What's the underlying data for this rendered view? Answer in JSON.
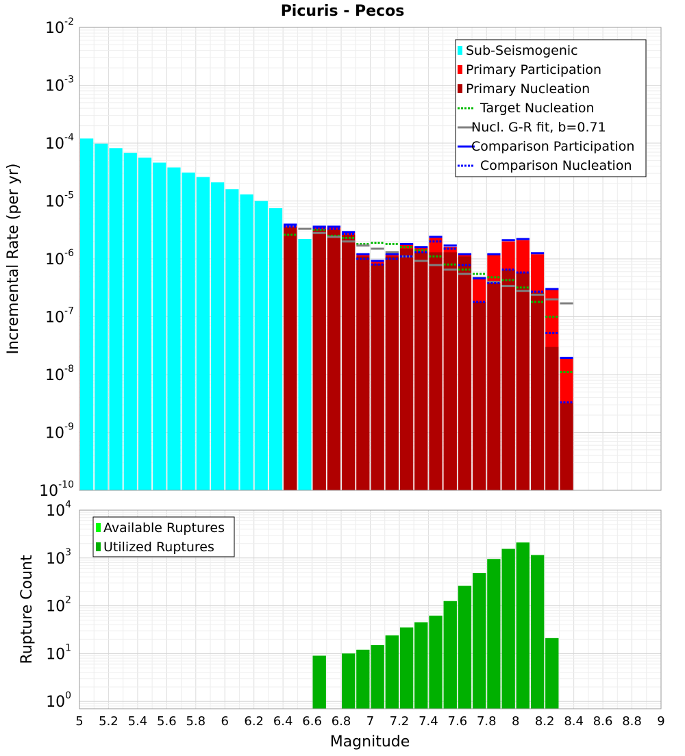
{
  "chart_data": [
    {
      "type": "bar",
      "title": "Picuris - Pecos",
      "xlabel": "",
      "ylabel": "Incremental Rate (per yr)",
      "yscale": "log",
      "xlim": [
        5,
        9
      ],
      "ylim": [
        1e-10,
        0.01
      ],
      "grid": true,
      "legend_position": "top-right",
      "y_ticks": [
        {
          "base": "10",
          "exp": "-10",
          "value": 1e-10
        },
        {
          "base": "10",
          "exp": "-9",
          "value": 1e-09
        },
        {
          "base": "10",
          "exp": "-8",
          "value": 1e-08
        },
        {
          "base": "10",
          "exp": "-7",
          "value": 1e-07
        },
        {
          "base": "10",
          "exp": "-6",
          "value": 1e-06
        },
        {
          "base": "10",
          "exp": "-5",
          "value": 1e-05
        },
        {
          "base": "10",
          "exp": "-4",
          "value": 0.0001
        },
        {
          "base": "10",
          "exp": "-3",
          "value": 0.001
        },
        {
          "base": "10",
          "exp": "-2",
          "value": 0.01
        }
      ],
      "series": [
        {
          "name": "Sub-Seismogenic",
          "kind": "bar",
          "color": "#00ffff",
          "x": [
            5.05,
            5.15,
            5.25,
            5.35,
            5.45,
            5.55,
            5.65,
            5.75,
            5.85,
            5.95,
            6.05,
            6.15,
            6.25,
            6.35,
            6.45,
            6.55
          ],
          "values": [
            0.00012,
            9.8e-05,
            8.2e-05,
            6.8e-05,
            5.6e-05,
            4.6e-05,
            3.8e-05,
            3.1e-05,
            2.6e-05,
            2.1e-05,
            1.6e-05,
            1.3e-05,
            1e-05,
            7.5e-06,
            3.5e-06,
            2.2e-06
          ]
        },
        {
          "name": "Primary Participation",
          "kind": "bar",
          "color": "#ff0000",
          "x": [
            6.45,
            6.65,
            6.75,
            6.85,
            6.95,
            7.05,
            7.15,
            7.25,
            7.35,
            7.45,
            7.55,
            7.65,
            7.75,
            7.85,
            7.95,
            8.05,
            8.15,
            8.25,
            8.35
          ],
          "values": [
            3.8e-06,
            3.5e-06,
            3.5e-06,
            2.8e-06,
            1.2e-06,
            9e-07,
            1.2e-06,
            1.8e-06,
            1.6e-06,
            2.3e-06,
            1.6e-06,
            1.2e-06,
            4.5e-07,
            1.2e-06,
            2e-06,
            2.1e-06,
            1.2e-06,
            2.9e-07,
            1.9e-08
          ]
        },
        {
          "name": "Primary Nucleation",
          "kind": "bar",
          "color": "#b00000",
          "x": [
            6.45,
            6.65,
            6.75,
            6.85,
            6.95,
            7.05,
            7.15,
            7.25,
            7.35,
            7.45,
            7.55,
            7.65,
            7.75,
            7.85,
            7.95,
            8.05,
            8.15,
            8.25,
            8.35
          ],
          "values": [
            3.5e-06,
            3.3e-06,
            3.2e-06,
            2.6e-06,
            1.1e-06,
            8.2e-07,
            1.1e-06,
            1.5e-06,
            1.3e-06,
            1.3e-06,
            1.3e-06,
            1.1e-06,
            1.8e-07,
            3.8e-07,
            6.5e-07,
            5.8e-07,
            2.6e-07,
            3e-08,
            3.2e-09
          ]
        },
        {
          "name": "Target Nucleation",
          "kind": "step",
          "style": "dotted",
          "color": "#00bb00",
          "x": [
            6.45,
            6.65,
            6.75,
            6.85,
            6.95,
            7.05,
            7.15,
            7.25,
            7.35,
            7.45,
            7.55,
            7.65,
            7.75,
            7.85,
            7.95,
            8.05,
            8.15,
            8.25,
            8.35
          ],
          "values": [
            2.6e-06,
            3.2e-06,
            2.5e-06,
            2.3e-06,
            1.8e-06,
            1.9e-06,
            1.8e-06,
            1.6e-06,
            1.4e-06,
            1.1e-06,
            8e-07,
            6.5e-07,
            5.5e-07,
            4.8e-07,
            4.3e-07,
            3.2e-07,
            1.8e-07,
            1e-07,
            1.1e-08
          ]
        },
        {
          "name": "Nucl. G-R fit, b=0.71",
          "kind": "step",
          "style": "solid",
          "color": "#808080",
          "x": [
            6.45,
            6.55,
            6.65,
            6.75,
            6.85,
            6.95,
            7.05,
            7.15,
            7.25,
            7.35,
            7.45,
            7.55,
            7.65,
            7.75,
            7.85,
            7.95,
            8.05,
            8.15,
            8.25,
            8.35
          ],
          "values": [
            3.8e-06,
            3.3e-06,
            2.8e-06,
            2.4e-06,
            2e-06,
            1.7e-06,
            1.5e-06,
            1.3e-06,
            1.1e-06,
            9.2e-07,
            7.8e-07,
            6.5e-07,
            5.5e-07,
            4.7e-07,
            4e-07,
            3.4e-07,
            2.8e-07,
            2.4e-07,
            2e-07,
            1.7e-07
          ]
        },
        {
          "name": "Comparison Participation",
          "kind": "step",
          "style": "solid",
          "color": "#0000ff",
          "x": [
            6.45,
            6.65,
            6.75,
            6.85,
            6.95,
            7.05,
            7.15,
            7.25,
            7.35,
            7.45,
            7.55,
            7.65,
            7.75,
            7.85,
            7.95,
            8.05,
            8.15,
            8.25,
            8.35
          ],
          "values": [
            3.9e-06,
            3.6e-06,
            3.6e-06,
            2.9e-06,
            1.2e-06,
            9.2e-07,
            1.2e-06,
            1.8e-06,
            1.6e-06,
            2.4e-06,
            1.7e-06,
            1.2e-06,
            4.6e-07,
            1.2e-06,
            2.1e-06,
            2.2e-06,
            1.25e-06,
            3e-07,
            1.95e-08
          ]
        },
        {
          "name": "Comparison Nucleation",
          "kind": "step",
          "style": "dotted",
          "color": "#0000ff",
          "x": [
            6.45,
            6.65,
            6.75,
            6.85,
            6.95,
            7.05,
            7.15,
            7.25,
            7.35,
            7.45,
            7.55,
            7.65,
            7.75,
            7.85,
            7.95,
            8.05,
            8.15,
            8.25,
            8.35
          ],
          "values": [
            3.6e-06,
            3.4e-06,
            3.3e-06,
            2.7e-06,
            1e-06,
            8e-07,
            1e-06,
            1.1e-06,
            1.3e-06,
            2e-06,
            1.5e-06,
            7.8e-07,
            1.8e-07,
            3.8e-07,
            6.5e-07,
            5.8e-07,
            2.7e-07,
            5.2e-08,
            3.3e-09
          ]
        }
      ],
      "legend": [
        {
          "label": "Sub-Seismogenic",
          "color": "#00ffff",
          "symbol": "bar"
        },
        {
          "label": "Primary Participation",
          "color": "#ff0000",
          "symbol": "bar"
        },
        {
          "label": "Primary Nucleation",
          "color": "#b00000",
          "symbol": "bar"
        },
        {
          "label": "Target Nucleation",
          "color": "#00bb00",
          "symbol": "dotted"
        },
        {
          "label": "Nucl. G-R fit, b=0.71",
          "color": "#808080",
          "symbol": "solid"
        },
        {
          "label": "Comparison Participation",
          "color": "#0000ff",
          "symbol": "solid"
        },
        {
          "label": "Comparison Nucleation",
          "color": "#0000ff",
          "symbol": "dotted"
        }
      ]
    },
    {
      "type": "bar",
      "title": "",
      "xlabel": "Magnitude",
      "ylabel": "Rupture Count",
      "yscale": "log",
      "xlim": [
        5,
        9
      ],
      "ylim": [
        0.7,
        10000
      ],
      "grid": true,
      "legend_position": "top-left",
      "x_ticks": [
        "5",
        "5.2",
        "5.4",
        "5.6",
        "5.8",
        "6",
        "6.2",
        "6.4",
        "6.6",
        "6.8",
        "7",
        "7.2",
        "7.4",
        "7.6",
        "7.8",
        "8",
        "8.2",
        "8.4",
        "8.6",
        "8.8",
        "9"
      ],
      "y_ticks": [
        {
          "base": "10",
          "exp": "0",
          "value": 1
        },
        {
          "base": "10",
          "exp": "1",
          "value": 10
        },
        {
          "base": "10",
          "exp": "2",
          "value": 100
        },
        {
          "base": "10",
          "exp": "3",
          "value": 1000
        },
        {
          "base": "10",
          "exp": "4",
          "value": 10000
        }
      ],
      "series": [
        {
          "name": "Available Ruptures",
          "kind": "bar",
          "color": "#00ff00",
          "x": [
            6.65,
            6.85,
            6.95,
            7.05,
            7.15,
            7.25,
            7.35,
            7.45,
            7.55,
            7.65,
            7.75,
            7.85,
            7.95,
            8.05,
            8.15,
            8.25
          ],
          "values": [
            9,
            10,
            12,
            15,
            24,
            35,
            45,
            62,
            125,
            260,
            480,
            950,
            1550,
            2100,
            1150,
            21
          ]
        },
        {
          "name": "Utilized Ruptures",
          "kind": "bar",
          "color": "#00b000",
          "x": [
            6.65,
            6.85,
            6.95,
            7.05,
            7.15,
            7.25,
            7.35,
            7.45,
            7.55,
            7.65,
            7.75,
            7.85,
            7.95,
            8.05,
            8.15,
            8.25
          ],
          "values": [
            9,
            10,
            12,
            15,
            24,
            35,
            45,
            62,
            125,
            260,
            480,
            950,
            1550,
            2100,
            1150,
            21
          ]
        }
      ],
      "legend": [
        {
          "label": "Available Ruptures",
          "color": "#00ff00",
          "symbol": "bar"
        },
        {
          "label": "Utilized Ruptures",
          "color": "#00b000",
          "symbol": "bar"
        }
      ]
    }
  ]
}
